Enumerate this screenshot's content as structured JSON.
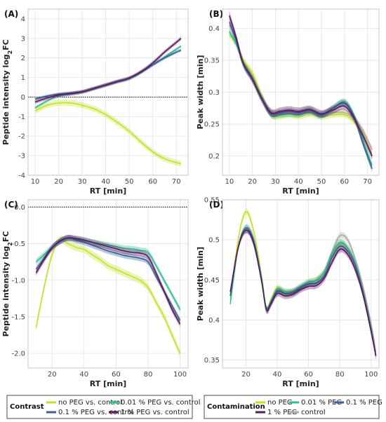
{
  "colors": {
    "no_peg": "#c4e02c",
    "peg_001": "#35b996",
    "peg_01": "#3a5f95",
    "peg_1": "#5a1a5c",
    "control": "#aaaaaa"
  },
  "chart_data": [
    {
      "panel": "(A)",
      "type": "line",
      "xlabel": "RT [min]",
      "ylabel": "Peptide intensity log",
      "ylabel_sub": "2",
      "ylabel_suffix": "FC",
      "xlim": [
        7,
        75
      ],
      "ylim": [
        -4,
        4.5
      ],
      "xticks": [
        10,
        20,
        30,
        40,
        50,
        60,
        70
      ],
      "yticks": [
        -4,
        -3,
        -2,
        -1,
        0,
        1,
        2,
        3,
        4
      ],
      "hline": 0,
      "series": [
        {
          "key": "no_peg",
          "x": [
            10,
            15,
            20,
            25,
            30,
            35,
            40,
            45,
            50,
            55,
            60,
            65,
            70,
            72
          ],
          "y": [
            -0.7,
            -0.42,
            -0.3,
            -0.3,
            -0.42,
            -0.6,
            -0.9,
            -1.3,
            -1.75,
            -2.3,
            -2.8,
            -3.15,
            -3.35,
            -3.4
          ],
          "band": 0.15
        },
        {
          "key": "peg_001",
          "x": [
            10,
            15,
            20,
            25,
            30,
            35,
            40,
            45,
            50,
            55,
            60,
            65,
            70,
            72
          ],
          "y": [
            -0.55,
            -0.2,
            0.05,
            0.15,
            0.25,
            0.42,
            0.6,
            0.78,
            0.95,
            1.25,
            1.65,
            2.05,
            2.45,
            2.6
          ],
          "band": 0.08
        },
        {
          "key": "peg_01",
          "x": [
            10,
            15,
            20,
            25,
            30,
            35,
            40,
            45,
            50,
            55,
            60,
            65,
            70,
            72
          ],
          "y": [
            -0.1,
            0.05,
            0.15,
            0.2,
            0.28,
            0.45,
            0.62,
            0.8,
            0.97,
            1.28,
            1.65,
            2.0,
            2.3,
            2.4
          ],
          "band": 0.08
        },
        {
          "key": "peg_1",
          "x": [
            10,
            15,
            20,
            25,
            30,
            35,
            40,
            45,
            50,
            55,
            60,
            65,
            70,
            72
          ],
          "y": [
            -0.25,
            -0.05,
            0.1,
            0.18,
            0.27,
            0.44,
            0.62,
            0.8,
            0.97,
            1.3,
            1.75,
            2.3,
            2.8,
            3.0
          ],
          "band": 0.1
        }
      ]
    },
    {
      "panel": "(B)",
      "type": "line",
      "xlabel": "RT [min]",
      "ylabel": "Peak width [min]",
      "xlim": [
        7,
        75
      ],
      "ylim": [
        0.17,
        0.43
      ],
      "xticks": [
        10,
        20,
        30,
        40,
        50,
        60,
        70
      ],
      "yticks": [
        0.2,
        0.25,
        0.3,
        0.35,
        0.4
      ],
      "series": [
        {
          "key": "control",
          "x": [
            10,
            13,
            16,
            20,
            24,
            28,
            32,
            36,
            40,
            45,
            50,
            55,
            60,
            64,
            68,
            72
          ],
          "y": [
            0.405,
            0.38,
            0.35,
            0.325,
            0.295,
            0.27,
            0.266,
            0.267,
            0.266,
            0.268,
            0.265,
            0.268,
            0.268,
            0.26,
            0.24,
            0.21
          ],
          "band": 0.005
        },
        {
          "key": "no_peg",
          "x": [
            10,
            13,
            16,
            20,
            24,
            28,
            32,
            36,
            40,
            45,
            50,
            55,
            60,
            64,
            68,
            72
          ],
          "y": [
            0.39,
            0.375,
            0.35,
            0.33,
            0.295,
            0.265,
            0.262,
            0.265,
            0.262,
            0.266,
            0.262,
            0.265,
            0.265,
            0.255,
            0.235,
            0.2
          ],
          "band": 0.005
        },
        {
          "key": "peg_001",
          "x": [
            10,
            13,
            16,
            20,
            24,
            28,
            32,
            36,
            40,
            45,
            50,
            55,
            60,
            64,
            68,
            72
          ],
          "y": [
            0.395,
            0.375,
            0.345,
            0.322,
            0.292,
            0.265,
            0.265,
            0.266,
            0.265,
            0.27,
            0.263,
            0.275,
            0.285,
            0.265,
            0.225,
            0.185
          ],
          "band": 0.005
        },
        {
          "key": "peg_01",
          "x": [
            10,
            13,
            16,
            20,
            24,
            28,
            32,
            36,
            40,
            45,
            50,
            55,
            60,
            64,
            68,
            72
          ],
          "y": [
            0.41,
            0.38,
            0.345,
            0.32,
            0.29,
            0.267,
            0.268,
            0.27,
            0.268,
            0.272,
            0.265,
            0.275,
            0.283,
            0.262,
            0.22,
            0.18
          ],
          "band": 0.005
        },
        {
          "key": "peg_1",
          "x": [
            10,
            13,
            16,
            20,
            24,
            28,
            32,
            36,
            40,
            45,
            50,
            55,
            60,
            64,
            68,
            72
          ],
          "y": [
            0.42,
            0.385,
            0.345,
            0.32,
            0.29,
            0.268,
            0.27,
            0.272,
            0.27,
            0.273,
            0.266,
            0.272,
            0.278,
            0.26,
            0.232,
            0.2
          ],
          "band": 0.006
        }
      ]
    },
    {
      "panel": "(C)",
      "type": "line",
      "xlabel": "RT [min]",
      "ylabel": "Peptide intensity log",
      "ylabel_sub": "2",
      "ylabel_suffix": "FC",
      "xlim": [
        5,
        105
      ],
      "ylim": [
        -2.2,
        0.1
      ],
      "xticks": [
        20,
        40,
        60,
        80,
        100
      ],
      "yticks": [
        -2.0,
        -1.5,
        -1.0,
        -0.5,
        0.0
      ],
      "ytick_labels": [
        "-2.0",
        "-1.5",
        "-1.0",
        "-0.5",
        "0.0"
      ],
      "hline": 0,
      "series": [
        {
          "key": "no_peg",
          "x": [
            10,
            15,
            20,
            25,
            30,
            35,
            40,
            45,
            50,
            55,
            60,
            65,
            70,
            75,
            80,
            85,
            90,
            95,
            100
          ],
          "y": [
            -1.65,
            -1.1,
            -0.65,
            -0.45,
            -0.5,
            -0.55,
            -0.58,
            -0.65,
            -0.72,
            -0.8,
            -0.85,
            -0.9,
            -0.95,
            -1.0,
            -1.1,
            -1.3,
            -1.5,
            -1.75,
            -2.0
          ],
          "band": 0.05
        },
        {
          "key": "peg_001",
          "x": [
            10,
            15,
            20,
            25,
            30,
            35,
            40,
            45,
            50,
            55,
            60,
            65,
            70,
            75,
            80,
            85,
            90,
            95,
            100
          ],
          "y": [
            -0.75,
            -0.65,
            -0.55,
            -0.47,
            -0.43,
            -0.44,
            -0.46,
            -0.48,
            -0.5,
            -0.52,
            -0.54,
            -0.56,
            -0.57,
            -0.59,
            -0.62,
            -0.8,
            -1.0,
            -1.2,
            -1.4
          ],
          "band": 0.04
        },
        {
          "key": "peg_01",
          "x": [
            10,
            15,
            20,
            25,
            30,
            35,
            40,
            45,
            50,
            55,
            60,
            65,
            70,
            75,
            80,
            85,
            90,
            95,
            100
          ],
          "y": [
            -0.85,
            -0.7,
            -0.55,
            -0.47,
            -0.42,
            -0.45,
            -0.48,
            -0.52,
            -0.56,
            -0.6,
            -0.63,
            -0.66,
            -0.68,
            -0.7,
            -0.75,
            -0.95,
            -1.15,
            -1.35,
            -1.55
          ],
          "band": 0.04
        },
        {
          "key": "peg_1",
          "x": [
            10,
            15,
            20,
            25,
            30,
            35,
            40,
            45,
            50,
            55,
            60,
            65,
            70,
            75,
            80,
            85,
            90,
            95,
            100
          ],
          "y": [
            -0.9,
            -0.72,
            -0.56,
            -0.46,
            -0.42,
            -0.43,
            -0.45,
            -0.48,
            -0.51,
            -0.54,
            -0.57,
            -0.6,
            -0.62,
            -0.63,
            -0.68,
            -0.9,
            -1.15,
            -1.4,
            -1.6
          ],
          "band": 0.04
        }
      ]
    },
    {
      "panel": "(D)",
      "type": "line",
      "xlabel": "RT [min]",
      "ylabel": "Peak width [min]",
      "xlim": [
        5,
        105
      ],
      "ylim": [
        0.34,
        0.55
      ],
      "xticks": [
        20,
        40,
        60,
        80,
        100
      ],
      "yticks": [
        0.35,
        0.4,
        0.45,
        0.5,
        0.55
      ],
      "series": [
        {
          "key": "control",
          "x": [
            10,
            15,
            20,
            25,
            30,
            33,
            36,
            40,
            45,
            50,
            55,
            60,
            65,
            70,
            75,
            80,
            85,
            90,
            95,
            100,
            103
          ],
          "y": [
            0.43,
            0.49,
            0.515,
            0.5,
            0.45,
            0.415,
            0.42,
            0.435,
            0.433,
            0.435,
            0.44,
            0.445,
            0.448,
            0.46,
            0.485,
            0.505,
            0.5,
            0.475,
            0.44,
            0.395,
            0.36
          ],
          "band": 0.004
        },
        {
          "key": "no_peg",
          "x": [
            10,
            15,
            20,
            25,
            30,
            33,
            36,
            40,
            45,
            50,
            55,
            60,
            65,
            70,
            75,
            80,
            85,
            90,
            95,
            100,
            103
          ],
          "y": [
            0.425,
            0.5,
            0.535,
            0.51,
            0.455,
            0.415,
            0.425,
            0.44,
            0.435,
            0.435,
            0.44,
            0.447,
            0.45,
            0.46,
            0.48,
            0.495,
            0.49,
            0.47,
            0.435,
            0.39,
            0.355
          ],
          "band": 0.004
        },
        {
          "key": "peg_001",
          "x": [
            10,
            15,
            20,
            25,
            30,
            33,
            36,
            40,
            45,
            50,
            55,
            60,
            65,
            70,
            75,
            80,
            85,
            90,
            95,
            100,
            103
          ],
          "y": [
            0.42,
            0.49,
            0.515,
            0.5,
            0.452,
            0.415,
            0.423,
            0.438,
            0.435,
            0.436,
            0.442,
            0.447,
            0.45,
            0.46,
            0.483,
            0.497,
            0.49,
            0.47,
            0.435,
            0.39,
            0.355
          ],
          "band": 0.004
        },
        {
          "key": "peg_01",
          "x": [
            10,
            15,
            20,
            25,
            30,
            33,
            36,
            40,
            45,
            50,
            55,
            60,
            65,
            70,
            75,
            80,
            85,
            90,
            95,
            100,
            103
          ],
          "y": [
            0.43,
            0.49,
            0.512,
            0.498,
            0.45,
            0.413,
            0.422,
            0.436,
            0.433,
            0.434,
            0.44,
            0.445,
            0.446,
            0.455,
            0.478,
            0.492,
            0.486,
            0.467,
            0.433,
            0.388,
            0.356
          ],
          "band": 0.004
        },
        {
          "key": "peg_1",
          "x": [
            10,
            15,
            20,
            25,
            30,
            33,
            36,
            40,
            45,
            50,
            55,
            60,
            65,
            70,
            75,
            80,
            85,
            90,
            95,
            100,
            103
          ],
          "y": [
            0.435,
            0.49,
            0.512,
            0.495,
            0.448,
            0.413,
            0.42,
            0.433,
            0.43,
            0.432,
            0.438,
            0.442,
            0.443,
            0.452,
            0.472,
            0.488,
            0.482,
            0.462,
            0.43,
            0.385,
            0.355
          ],
          "band": 0.004
        }
      ]
    }
  ],
  "legends": {
    "contrast": {
      "title": "Contrast",
      "items": [
        {
          "key": "no_peg",
          "label": "no PEG vs. control"
        },
        {
          "key": "peg_001",
          "label": "0.01 % PEG vs. control"
        },
        {
          "key": "peg_01",
          "label": "0.1 % PEG vs. control"
        },
        {
          "key": "peg_1",
          "label": "1 % PEG vs. control"
        }
      ]
    },
    "contamination": {
      "title": "Contamination",
      "items": [
        {
          "key": "no_peg",
          "label": "no PEG"
        },
        {
          "key": "peg_001",
          "label": "0.01 % PEG"
        },
        {
          "key": "peg_01",
          "label": "0.1 % PEG"
        },
        {
          "key": "peg_1",
          "label": "1 % PEG"
        },
        {
          "key": "control",
          "label": "control"
        }
      ]
    }
  }
}
